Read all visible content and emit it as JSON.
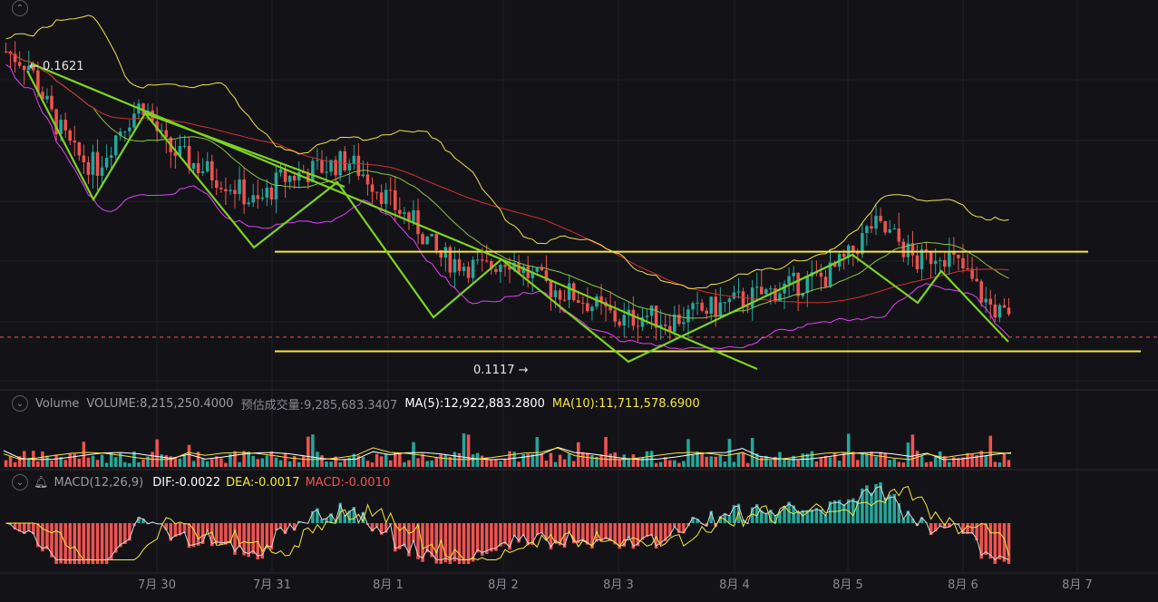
{
  "price_markers": {
    "high": "← 0.1621",
    "low": "0.1117 →"
  },
  "volume_legend": {
    "name": "Volume",
    "volume": "VOLUME:8,215,250.4000",
    "est": "预估成交量:9,285,683.3407",
    "ma5": "MA(5):12,922,883.2800",
    "ma10": "MA(10):11,711,578.6900"
  },
  "macd_legend": {
    "name": "MACD(12,26,9)",
    "dif": "DIF:-0.0022",
    "dea": "DEA:-0.0017",
    "macd": "MACD:-0.0010"
  },
  "x_axis": [
    "7月 30",
    "7月 31",
    "8月 1",
    "8月 2",
    "8月 3",
    "8月 4",
    "8月 5",
    "8月 6",
    "8月 7"
  ],
  "colors": {
    "up": "#26a69a",
    "down": "#ef5350",
    "trendline": "#7ed321",
    "support": "#f5e63c",
    "bb": "#f0e050",
    "ma_mid": "#8bc34a",
    "ma_long": "#d32f2f",
    "lower_band": "#e040fb",
    "dif": "#d8d8d8",
    "dea": "#f5e63c"
  },
  "chart_data": {
    "type": "candlestick",
    "ylim": [
      0.108,
      0.168
    ],
    "x_dates": [
      "7月 30",
      "7月 31",
      "8月 1",
      "8月 2",
      "8月 3",
      "8月 4",
      "8月 5",
      "8月 6",
      "8月 7"
    ],
    "close_path": [
      0.16,
      0.158,
      0.15,
      0.144,
      0.142,
      0.148,
      0.152,
      0.145,
      0.143,
      0.141,
      0.139,
      0.136,
      0.14,
      0.141,
      0.142,
      0.143,
      0.14,
      0.136,
      0.133,
      0.128,
      0.127,
      0.126,
      0.128,
      0.125,
      0.123,
      0.122,
      0.12,
      0.118,
      0.119,
      0.118,
      0.119,
      0.12,
      0.121,
      0.122,
      0.123,
      0.124,
      0.125,
      0.128,
      0.133,
      0.131,
      0.127,
      0.129,
      0.126,
      0.121,
      0.118
    ],
    "resistance": 0.1288,
    "support": 0.1133,
    "current_price": 0.1155,
    "high_marker": 0.1621,
    "low_marker": 0.1117,
    "volume": {
      "last": 8215250.4,
      "estimated": 9285683.3407,
      "ma5": 12922883.28,
      "ma10": 11711578.69
    },
    "macd": {
      "dif": -0.0022,
      "dea": -0.0017,
      "hist": -0.001
    }
  }
}
